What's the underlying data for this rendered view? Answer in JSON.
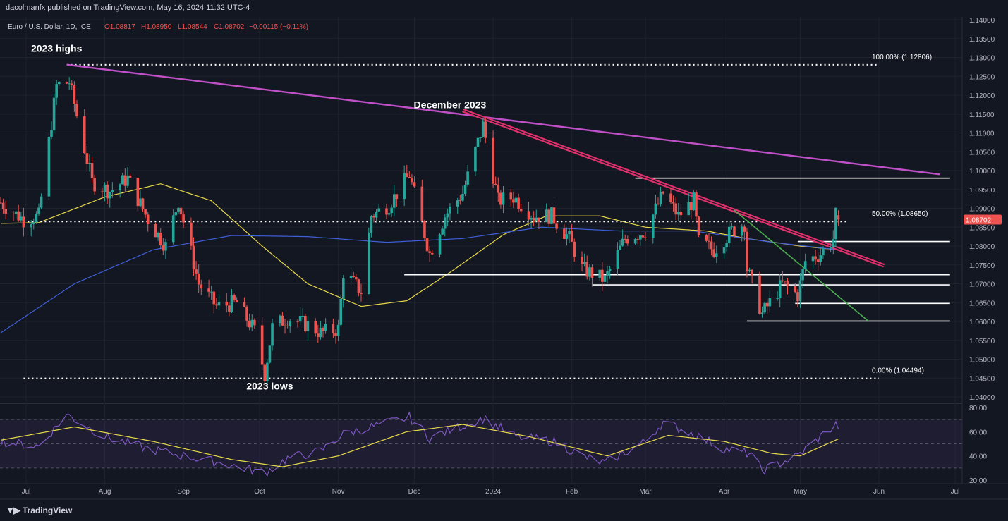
{
  "header": {
    "publisher": "dacolmanfx published on TradingView.com, May 16, 2024 11:32 UTC-4"
  },
  "legend": {
    "symbol": "Euro / U.S. Dollar, 1D, ICE",
    "open": "O1.08817",
    "high": "H1.08950",
    "low": "L1.08544",
    "close": "C1.08702",
    "change": "−0.00115 (−0.11%)"
  },
  "colors": {
    "background": "#131722",
    "up": "#26a69a",
    "down": "#ef5350",
    "sma50": "#e8d94a",
    "sma200": "#3f5fd6",
    "long_trendline": "#c050c8",
    "dec_trendline": "#e0306c",
    "green_trendline": "#4caf50",
    "rsi": "#7e57c2",
    "rsi_ma": "#e8d94a",
    "price_badge": "#ef5350"
  },
  "footer": {
    "brand": "TradingView",
    "logo_icon": "tradingview-logo-icon"
  },
  "chart_data": {
    "type": "candlestick",
    "symbol": "EURUSD",
    "timeframe": "1D",
    "x_range": [
      "2023-06-20",
      "2024-07-05"
    ],
    "ylim": [
      1.04,
      1.14
    ],
    "price_ticks": [
      "1.14000",
      "1.13500",
      "1.13000",
      "1.12500",
      "1.12000",
      "1.11500",
      "1.11000",
      "1.10500",
      "1.10000",
      "1.09500",
      "1.09000",
      "1.08500",
      "1.08000",
      "1.07500",
      "1.07000",
      "1.06500",
      "1.06000",
      "1.05500",
      "1.05000",
      "1.04500",
      "1.04000"
    ],
    "last_price_label": "1.08702",
    "last_price": 1.08702,
    "x_ticks": [
      {
        "label": "Jul",
        "date": "2023-07-01"
      },
      {
        "label": "Aug",
        "date": "2023-08-01"
      },
      {
        "label": "Sep",
        "date": "2023-09-01"
      },
      {
        "label": "Oct",
        "date": "2023-10-01"
      },
      {
        "label": "Nov",
        "date": "2023-11-01"
      },
      {
        "label": "Dec",
        "date": "2023-12-01"
      },
      {
        "label": "2024",
        "date": "2024-01-01"
      },
      {
        "label": "Feb",
        "date": "2024-02-01"
      },
      {
        "label": "Mar",
        "date": "2024-03-01"
      },
      {
        "label": "Apr",
        "date": "2024-04-01"
      },
      {
        "label": "May",
        "date": "2024-05-01"
      },
      {
        "label": "Jun",
        "date": "2024-06-01"
      },
      {
        "label": "Jul",
        "date": "2024-07-01"
      }
    ],
    "ohlc_anchors": [
      {
        "date": "2023-06-21",
        "close": 1.0915
      },
      {
        "date": "2023-06-30",
        "close": 1.087
      },
      {
        "date": "2023-07-06",
        "close": 1.088
      },
      {
        "date": "2023-07-13",
        "close": 1.1225
      },
      {
        "date": "2023-07-18",
        "close": 1.1235
      },
      {
        "date": "2023-07-27",
        "close": 1.097
      },
      {
        "date": "2023-08-03",
        "close": 1.0945
      },
      {
        "date": "2023-08-10",
        "close": 1.098
      },
      {
        "date": "2023-08-18",
        "close": 1.087
      },
      {
        "date": "2023-08-25",
        "close": 1.08
      },
      {
        "date": "2023-08-30",
        "close": 1.092
      },
      {
        "date": "2023-09-07",
        "close": 1.07
      },
      {
        "date": "2023-09-14",
        "close": 1.064
      },
      {
        "date": "2023-09-22",
        "close": 1.065
      },
      {
        "date": "2023-09-29",
        "close": 1.0575
      },
      {
        "date": "2023-10-03",
        "close": 1.046
      },
      {
        "date": "2023-10-06",
        "close": 1.0585
      },
      {
        "date": "2023-10-12",
        "close": 1.061
      },
      {
        "date": "2023-10-20",
        "close": 1.059
      },
      {
        "date": "2023-10-25",
        "close": 1.057
      },
      {
        "date": "2023-11-01",
        "close": 1.058
      },
      {
        "date": "2023-11-03",
        "close": 1.073
      },
      {
        "date": "2023-11-10",
        "close": 1.068
      },
      {
        "date": "2023-11-14",
        "close": 1.088
      },
      {
        "date": "2023-11-21",
        "close": 1.091
      },
      {
        "date": "2023-11-29",
        "close": 1.099
      },
      {
        "date": "2023-12-07",
        "close": 1.078
      },
      {
        "date": "2023-12-13",
        "close": 1.088
      },
      {
        "date": "2023-12-20",
        "close": 1.094
      },
      {
        "date": "2023-12-28",
        "close": 1.112
      },
      {
        "date": "2024-01-03",
        "close": 1.092
      },
      {
        "date": "2024-01-09",
        "close": 1.093
      },
      {
        "date": "2024-01-17",
        "close": 1.088
      },
      {
        "date": "2024-01-24",
        "close": 1.088
      },
      {
        "date": "2024-01-31",
        "close": 1.082
      },
      {
        "date": "2024-02-05",
        "close": 1.074
      },
      {
        "date": "2024-02-14",
        "close": 1.071
      },
      {
        "date": "2024-02-22",
        "close": 1.082
      },
      {
        "date": "2024-03-01",
        "close": 1.084
      },
      {
        "date": "2024-03-08",
        "close": 1.094
      },
      {
        "date": "2024-03-14",
        "close": 1.088
      },
      {
        "date": "2024-03-20",
        "close": 1.092
      },
      {
        "date": "2024-03-22",
        "close": 1.081
      },
      {
        "date": "2024-03-28",
        "close": 1.079
      },
      {
        "date": "2024-04-04",
        "close": 1.084
      },
      {
        "date": "2024-04-09",
        "close": 1.086
      },
      {
        "date": "2024-04-10",
        "close": 1.074
      },
      {
        "date": "2024-04-16",
        "close": 1.062
      },
      {
        "date": "2024-04-19",
        "close": 1.065
      },
      {
        "date": "2024-04-24",
        "close": 1.07
      },
      {
        "date": "2024-04-30",
        "close": 1.067
      },
      {
        "date": "2024-05-03",
        "close": 1.076
      },
      {
        "date": "2024-05-09",
        "close": 1.078
      },
      {
        "date": "2024-05-14",
        "close": 1.082
      },
      {
        "date": "2024-05-15",
        "close": 1.0882
      },
      {
        "date": "2024-05-16",
        "close": 1.08702
      }
    ],
    "series": [
      {
        "name": "SMA 50",
        "values_at": [
          [
            "2023-06-21",
            1.086
          ],
          [
            "2023-07-06",
            1.0862
          ],
          [
            "2023-08-01",
            1.093
          ],
          [
            "2023-08-23",
            1.0965
          ],
          [
            "2023-09-12",
            1.092
          ],
          [
            "2023-10-02",
            1.08
          ],
          [
            "2023-10-20",
            1.07
          ],
          [
            "2023-11-10",
            1.064
          ],
          [
            "2023-11-28",
            1.0655
          ],
          [
            "2023-12-15",
            1.073
          ],
          [
            "2024-01-05",
            1.083
          ],
          [
            "2024-01-22",
            1.088
          ],
          [
            "2024-02-12",
            1.088
          ],
          [
            "2024-03-01",
            1.085
          ],
          [
            "2024-03-25",
            1.084
          ],
          [
            "2024-04-10",
            1.082
          ],
          [
            "2024-05-01",
            1.08
          ],
          [
            "2024-05-16",
            1.079
          ]
        ]
      },
      {
        "name": "SMA 200",
        "values_at": [
          [
            "2023-06-21",
            1.057
          ],
          [
            "2023-07-20",
            1.07
          ],
          [
            "2023-08-20",
            1.079
          ],
          [
            "2023-09-20",
            1.0828
          ],
          [
            "2023-10-20",
            1.0825
          ],
          [
            "2023-11-20",
            1.081
          ],
          [
            "2023-12-20",
            1.082
          ],
          [
            "2024-01-20",
            1.085
          ],
          [
            "2024-02-20",
            1.084
          ],
          [
            "2024-03-20",
            1.084
          ],
          [
            "2024-04-20",
            1.081
          ],
          [
            "2024-05-16",
            1.079
          ]
        ]
      }
    ],
    "horizontal_levels": [
      {
        "price": 1.12806,
        "style": "dotted",
        "label": "100.00% (1.12806)",
        "from": "2023-07-17",
        "to": "2024-06-01"
      },
      {
        "price": 1.0865,
        "style": "dotted",
        "label": "50.00% (1.08650)",
        "from": "2023-06-30",
        "to": "2024-05-20"
      },
      {
        "price": 1.04494,
        "style": "dotted",
        "label": "0.00% (1.04494)",
        "from": "2023-06-30",
        "to": "2024-06-01"
      },
      {
        "price": 1.098,
        "style": "solid",
        "label": "",
        "from": "2024-02-26",
        "to": "2024-06-29"
      },
      {
        "price": 1.0812,
        "style": "solid",
        "label": "",
        "from": "2024-04-30",
        "to": "2024-06-29"
      },
      {
        "price": 1.0724,
        "style": "solid",
        "label": "",
        "from": "2023-11-27",
        "to": "2024-06-29"
      },
      {
        "price": 1.0697,
        "style": "solid",
        "label": "",
        "from": "2024-02-09",
        "to": "2024-06-29"
      },
      {
        "price": 1.0648,
        "style": "solid",
        "label": "",
        "from": "2024-04-29",
        "to": "2024-06-29"
      },
      {
        "price": 1.0601,
        "style": "solid",
        "label": "",
        "from": "2024-04-10",
        "to": "2024-06-29"
      }
    ],
    "trendlines": [
      {
        "name": "long",
        "from": [
          "2023-07-17",
          1.1281
        ],
        "to": [
          "2024-06-25",
          1.099
        ]
      },
      {
        "name": "december",
        "from": [
          "2023-12-20",
          1.116
        ],
        "to": [
          "2024-06-03",
          1.0748
        ]
      },
      {
        "name": "green",
        "from": [
          "2024-04-05",
          1.0895
        ],
        "to": [
          "2024-05-28",
          1.06
        ]
      }
    ],
    "annotations": [
      {
        "text": "2023 highs",
        "date": "2023-07-13",
        "price": 1.1315
      },
      {
        "text": "December 2023",
        "date": "2023-12-15",
        "price": 1.1165
      },
      {
        "text": "2023 lows",
        "date": "2023-10-05",
        "price": 1.042
      }
    ],
    "rsi": {
      "ylim": [
        20,
        80
      ],
      "ticks": [
        "80.00",
        "60.00",
        "40.00",
        "20.00"
      ],
      "band": [
        30,
        70
      ],
      "mid": 50,
      "rsi_at": [
        [
          "2023-06-21",
          52
        ],
        [
          "2023-07-06",
          48
        ],
        [
          "2023-07-17",
          74
        ],
        [
          "2023-08-01",
          56
        ],
        [
          "2023-08-18",
          46
        ],
        [
          "2023-09-01",
          40
        ],
        [
          "2023-09-14",
          35
        ],
        [
          "2023-10-03",
          26
        ],
        [
          "2023-10-12",
          38
        ],
        [
          "2023-10-25",
          44
        ],
        [
          "2023-11-03",
          58
        ],
        [
          "2023-11-14",
          64
        ],
        [
          "2023-11-29",
          72
        ],
        [
          "2023-12-07",
          55
        ],
        [
          "2023-12-28",
          71
        ],
        [
          "2024-01-10",
          56
        ],
        [
          "2024-01-25",
          52
        ],
        [
          "2024-02-05",
          40
        ],
        [
          "2024-02-14",
          34
        ],
        [
          "2024-03-01",
          52
        ],
        [
          "2024-03-08",
          68
        ],
        [
          "2024-03-20",
          58
        ],
        [
          "2024-04-01",
          46
        ],
        [
          "2024-04-11",
          42
        ],
        [
          "2024-04-16",
          28
        ],
        [
          "2024-04-30",
          40
        ],
        [
          "2024-05-09",
          56
        ],
        [
          "2024-05-15",
          66
        ],
        [
          "2024-05-16",
          64
        ]
      ],
      "ma_at": [
        [
          "2023-06-21",
          53
        ],
        [
          "2023-07-20",
          64
        ],
        [
          "2023-08-20",
          52
        ],
        [
          "2023-09-20",
          37
        ],
        [
          "2023-10-10",
          31
        ],
        [
          "2023-11-01",
          40
        ],
        [
          "2023-11-28",
          60
        ],
        [
          "2023-12-20",
          66
        ],
        [
          "2024-01-15",
          56
        ],
        [
          "2024-02-15",
          40
        ],
        [
          "2024-03-10",
          57
        ],
        [
          "2024-04-01",
          52
        ],
        [
          "2024-04-20",
          42
        ],
        [
          "2024-05-01",
          40
        ],
        [
          "2024-05-16",
          54
        ]
      ]
    }
  }
}
